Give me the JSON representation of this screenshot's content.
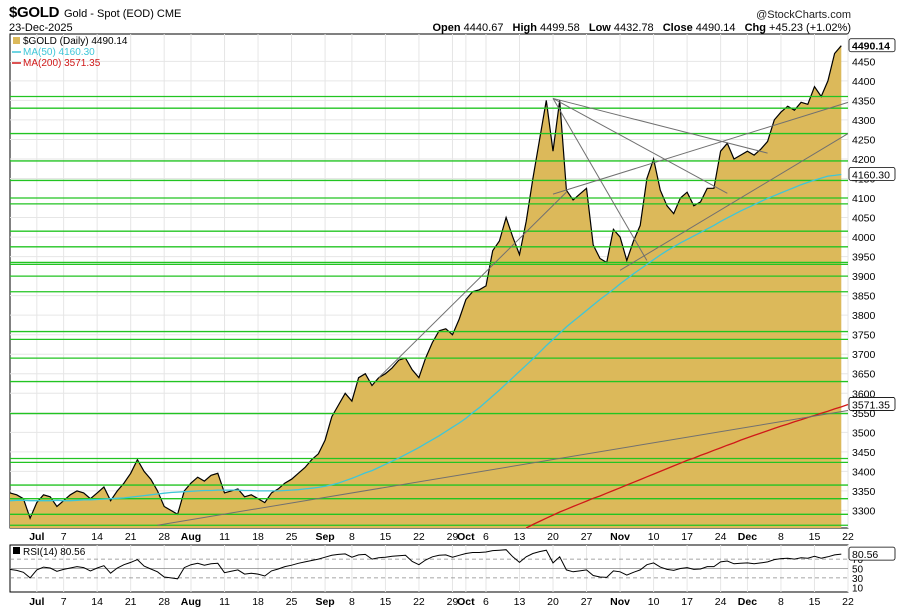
{
  "header": {
    "symbol": "$GOLD",
    "description": "Gold - Spot (EOD) CME",
    "date": "23-Dec-2025",
    "watermark": "@StockCharts.com",
    "open_label": "Open",
    "open": "4440.67",
    "high_label": "High",
    "high": "4499.58",
    "low_label": "Low",
    "low": "4432.78",
    "close_label": "Close",
    "close": "4490.14",
    "chg_label": "Chg",
    "chg": "+45.23 (+1.02%)"
  },
  "colors": {
    "price_fill": "#dcb95a",
    "price_line": "#000000",
    "ma50": "#3ec6d8",
    "ma200": "#d01818",
    "hlines": "#22c422",
    "trendlines": "#707070",
    "grid": "#e6e6e6"
  },
  "chart_data": [
    {
      "type": "area",
      "legend": [
        {
          "key": "price",
          "text": "$GOLD (Daily) 4490.14",
          "color": "#dcb95a"
        },
        {
          "key": "ma50",
          "text": "MA(50) 4160.30",
          "color": "#3ec6d8"
        },
        {
          "key": "ma200",
          "text": "MA(200) 3571.35",
          "color": "#d01818"
        }
      ],
      "legend_placement": "top-left",
      "ylim": [
        3255,
        4520
      ],
      "yticks": [
        3300,
        3350,
        3400,
        3450,
        3500,
        3550,
        3600,
        3650,
        3700,
        3750,
        3800,
        3850,
        3900,
        3950,
        4000,
        4050,
        4100,
        4150,
        4200,
        4250,
        4300,
        4350,
        4400,
        4450
      ],
      "xlim": [
        0,
        125
      ],
      "xtick_labels": [
        {
          "i": 4,
          "t": "Jul"
        },
        {
          "i": 8,
          "t": "7"
        },
        {
          "i": 13,
          "t": "14"
        },
        {
          "i": 18,
          "t": "21"
        },
        {
          "i": 23,
          "t": "28"
        },
        {
          "i": 27,
          "t": "Aug"
        },
        {
          "i": 32,
          "t": "11"
        },
        {
          "i": 37,
          "t": "18"
        },
        {
          "i": 42,
          "t": "25"
        },
        {
          "i": 47,
          "t": "Sep"
        },
        {
          "i": 51,
          "t": "8"
        },
        {
          "i": 56,
          "t": "15"
        },
        {
          "i": 61,
          "t": "22"
        },
        {
          "i": 66,
          "t": "29"
        },
        {
          "i": 68,
          "t": "Oct"
        },
        {
          "i": 71,
          "t": "6"
        },
        {
          "i": 76,
          "t": "13"
        },
        {
          "i": 81,
          "t": "20"
        },
        {
          "i": 86,
          "t": "27"
        },
        {
          "i": 91,
          "t": "Nov"
        },
        {
          "i": 96,
          "t": "10"
        },
        {
          "i": 101,
          "t": "17"
        },
        {
          "i": 106,
          "t": "24"
        },
        {
          "i": 110,
          "t": "Dec"
        },
        {
          "i": 115,
          "t": "8"
        },
        {
          "i": 120,
          "t": "15"
        },
        {
          "i": 125,
          "t": "22"
        }
      ],
      "last_labels": {
        "price": "4490.14",
        "ma50": "4160.30",
        "ma200": "3571.35"
      },
      "price": [
        3345,
        3340,
        3330,
        3280,
        3320,
        3340,
        3335,
        3310,
        3325,
        3340,
        3350,
        3345,
        3330,
        3345,
        3360,
        3325,
        3350,
        3370,
        3395,
        3430,
        3400,
        3380,
        3350,
        3310,
        3300,
        3290,
        3350,
        3370,
        3385,
        3375,
        3390,
        3395,
        3345,
        3350,
        3355,
        3335,
        3340,
        3330,
        3320,
        3345,
        3355,
        3370,
        3380,
        3395,
        3410,
        3430,
        3445,
        3480,
        3540,
        3570,
        3600,
        3580,
        3640,
        3650,
        3620,
        3640,
        3650,
        3665,
        3685,
        3690,
        3660,
        3640,
        3690,
        3730,
        3760,
        3765,
        3750,
        3790,
        3840,
        3860,
        3865,
        3875,
        3965,
        3990,
        4050,
        4000,
        3955,
        4040,
        4150,
        4250,
        4350,
        4220,
        4350,
        4120,
        4095,
        4110,
        4125,
        3980,
        3945,
        3935,
        4020,
        4000,
        3940,
        3990,
        4030,
        4150,
        4200,
        4120,
        4080,
        4060,
        4100,
        4115,
        4080,
        4090,
        4125,
        4125,
        4220,
        4240,
        4200,
        4210,
        4220,
        4210,
        4225,
        4245,
        4300,
        4320,
        4335,
        4325,
        4345,
        4340,
        4385,
        4360,
        4400,
        4470,
        4490
      ],
      "ma50": [
        3325,
        3326,
        3326,
        3325,
        3325,
        3325,
        3325,
        3326,
        3325,
        3325,
        3326,
        3327,
        3327,
        3328,
        3329,
        3330,
        3331,
        3332,
        3334,
        3336,
        3338,
        3340,
        3342,
        3344,
        3346,
        3347,
        3348,
        3349,
        3350,
        3351,
        3351,
        3352,
        3352,
        3352,
        3352,
        3351,
        3351,
        3350,
        3350,
        3350,
        3350,
        3351,
        3352,
        3353,
        3355,
        3357,
        3359,
        3362,
        3366,
        3370,
        3376,
        3382,
        3389,
        3396,
        3402,
        3410,
        3418,
        3426,
        3434,
        3443,
        3452,
        3461,
        3471,
        3481,
        3491,
        3502,
        3513,
        3524,
        3536,
        3550,
        3563,
        3578,
        3593,
        3608,
        3624,
        3640,
        3656,
        3672,
        3688,
        3705,
        3722,
        3738,
        3754,
        3770,
        3784,
        3798,
        3812,
        3826,
        3840,
        3853,
        3866,
        3880,
        3893,
        3906,
        3918,
        3930,
        3942,
        3954,
        3965,
        3975,
        3985,
        3994,
        4003,
        4012,
        4021,
        4030,
        4040,
        4049,
        4058,
        4067,
        4075,
        4083,
        4091,
        4099,
        4106,
        4113,
        4120,
        4127,
        4134,
        4140,
        4146,
        4151,
        4156,
        4158,
        4160.3
      ],
      "ma200": [
        null,
        null,
        null,
        null,
        null,
        null,
        null,
        null,
        null,
        null,
        null,
        null,
        null,
        null,
        null,
        null,
        null,
        null,
        null,
        null,
        null,
        null,
        null,
        null,
        null,
        null,
        null,
        null,
        null,
        null,
        null,
        null,
        null,
        null,
        null,
        null,
        null,
        null,
        null,
        null,
        null,
        null,
        null,
        null,
        null,
        null,
        null,
        null,
        null,
        null,
        null,
        null,
        null,
        null,
        null,
        null,
        null,
        null,
        null,
        null,
        null,
        null,
        null,
        null,
        null,
        null,
        null,
        null,
        null,
        null,
        null,
        null,
        null,
        null,
        null,
        null,
        null,
        3255,
        3264,
        3272,
        3280,
        3288,
        3296,
        3303,
        3310,
        3317,
        3324,
        3331,
        3337,
        3344,
        3351,
        3358,
        3365,
        3372,
        3379,
        3386,
        3393,
        3400,
        3407,
        3414,
        3421,
        3428,
        3434,
        3441,
        3447,
        3454,
        3460,
        3467,
        3473,
        3480,
        3486,
        3492,
        3498,
        3504,
        3510,
        3516,
        3521,
        3527,
        3532,
        3538,
        3543,
        3549,
        3554,
        3560,
        3565,
        3571.35
      ],
      "hlines": [
        3262,
        3290,
        3330,
        3365,
        3423,
        3433,
        3548,
        3630,
        3690,
        3738,
        3758,
        3860,
        3900,
        3930,
        3935,
        3975,
        4015,
        4085,
        4100,
        4145,
        4195,
        4265,
        4330,
        4360
      ],
      "trendlines": [
        [
          [
            22,
            3262
          ],
          [
            125,
            3556
          ]
        ],
        [
          [
            55,
            3640
          ],
          [
            83,
            4115
          ]
        ],
        [
          [
            81,
            4355
          ],
          [
            113,
            4215
          ]
        ],
        [
          [
            81,
            4355
          ],
          [
            95,
            3940
          ]
        ],
        [
          [
            81,
            4355
          ],
          [
            107,
            4112
          ]
        ],
        [
          [
            81,
            4110
          ],
          [
            125,
            4345
          ]
        ],
        [
          [
            91,
            3915
          ],
          [
            125,
            4265
          ]
        ]
      ]
    },
    {
      "type": "line",
      "legend": [
        {
          "key": "rsi",
          "text": "RSI(14) 80.56",
          "color": "#000000"
        }
      ],
      "ylim": [
        0,
        100
      ],
      "yticks": [
        10,
        30,
        50,
        70
      ],
      "last_label": "80.56",
      "rsi": [
        48,
        46,
        42,
        30,
        47,
        53,
        51,
        44,
        48,
        51,
        54,
        52,
        45,
        51,
        56,
        40,
        51,
        58,
        63,
        69,
        55,
        49,
        43,
        32,
        30,
        28,
        52,
        58,
        61,
        57,
        60,
        61,
        41,
        44,
        47,
        38,
        40,
        38,
        34,
        45,
        49,
        54,
        57,
        61,
        64,
        67,
        70,
        74,
        78,
        80,
        81,
        74,
        79,
        80,
        70,
        73,
        74,
        76,
        77,
        78,
        65,
        58,
        68,
        75,
        78,
        79,
        74,
        78,
        82,
        84,
        84,
        85,
        88,
        89,
        90,
        75,
        63,
        75,
        82,
        86,
        89,
        62,
        75,
        47,
        43,
        45,
        47,
        35,
        32,
        31,
        45,
        43,
        36,
        42,
        47,
        58,
        62,
        53,
        48,
        46,
        50,
        52,
        48,
        49,
        54,
        54,
        64,
        66,
        60,
        61,
        62,
        60,
        62,
        64,
        69,
        71,
        72,
        70,
        73,
        72,
        76,
        72,
        75,
        79,
        80.56
      ]
    }
  ],
  "x_axis_bottom_labels_note": ""
}
